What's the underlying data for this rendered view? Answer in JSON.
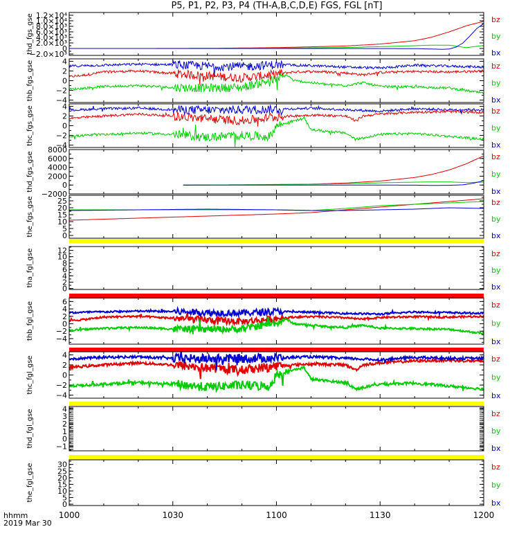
{
  "title": "P5, P1, P2, P3, P4 (TH-A,B,C,D,E) FGS, FGL [nT]",
  "x_axis": {
    "label_line1": "hhmm",
    "label_line2": "2019 Mar 30",
    "ticks": [
      "1000",
      "1030",
      "1100",
      "1130",
      "1200"
    ]
  },
  "colors": {
    "bz": "#e00000",
    "by": "#00cc00",
    "bx": "#0000d0",
    "bar_yellow": "#ffff00",
    "bar_red": "#ff0000"
  },
  "chart_data": [
    {
      "type": "line",
      "ylabel": "thd_fgs_gse",
      "yticks": [
        "1.2×10⁴",
        "1.0×10⁴",
        "8.0×10³",
        "6.0×10³",
        "4.0×10³",
        "2.0×10³",
        "0",
        "−2.0×10³"
      ],
      "ytick_values": [
        12000,
        10000,
        8000,
        6000,
        4000,
        2000,
        0,
        -2000
      ],
      "ylim": [
        -2500,
        13000
      ],
      "legend": [
        "bz",
        "by",
        "bx"
      ],
      "series": [
        {
          "name": "bz",
          "x": [
            0,
            20,
            40,
            60,
            80,
            90,
            100,
            105,
            110,
            115,
            120
          ],
          "values": [
            0,
            0,
            50,
            300,
            900,
            1600,
            2800,
            4100,
            6000,
            8200,
            9800
          ]
        },
        {
          "name": "by",
          "x": [
            0,
            40,
            60,
            80,
            90,
            100,
            105,
            110,
            115,
            120
          ],
          "values": [
            0,
            0,
            100,
            350,
            650,
            1000,
            1200,
            1200,
            300,
            1100
          ]
        },
        {
          "name": "bx",
          "x": [
            0,
            80,
            100,
            105,
            108,
            110,
            112,
            114,
            116,
            118,
            120
          ],
          "values": [
            0,
            0,
            -50,
            -200,
            -300,
            -200,
            500,
            2000,
            4500,
            7200,
            9000
          ]
        }
      ]
    },
    {
      "type": "line",
      "ylabel": "thb_fgs_gse",
      "yticks": [
        "4",
        "2",
        "0",
        "−2",
        "−4"
      ],
      "ytick_values": [
        4,
        2,
        0,
        -2,
        -4
      ],
      "ylim": [
        -4.5,
        4.5
      ],
      "legend": [
        "bz",
        "by",
        "bx"
      ],
      "series": [
        {
          "name": "bz",
          "x": [
            0,
            5,
            10,
            20,
            30,
            40,
            50,
            55,
            60,
            65,
            70,
            75,
            80,
            85,
            90,
            100,
            110,
            120
          ],
          "values": [
            0.8,
            1.2,
            1.8,
            2.0,
            1.5,
            1.0,
            0.6,
            0.9,
            1.4,
            1.8,
            1.9,
            1.8,
            1.6,
            1.2,
            1.7,
            1.9,
            1.8,
            2.0
          ]
        },
        {
          "name": "by",
          "x": [
            0,
            5,
            10,
            20,
            30,
            40,
            50,
            55,
            60,
            63,
            65,
            70,
            75,
            80,
            85,
            90,
            100,
            110,
            120
          ],
          "values": [
            -1.8,
            -1.5,
            -1.2,
            -1.0,
            -1.4,
            -1.5,
            -1.4,
            -0.5,
            0.2,
            1.2,
            0.0,
            -0.4,
            -0.8,
            -1.0,
            -0.4,
            -1.2,
            -1.3,
            -1.5,
            -2.6
          ]
        },
        {
          "name": "bx",
          "x": [
            0,
            10,
            20,
            30,
            40,
            50,
            60,
            70,
            80,
            90,
            100,
            110,
            120
          ],
          "values": [
            3.0,
            3.2,
            3.4,
            3.3,
            3.0,
            2.9,
            3.3,
            3.1,
            2.8,
            2.6,
            3.2,
            3.0,
            2.8
          ]
        }
      ]
    },
    {
      "type": "line",
      "ylabel": "thc_fgs_gse",
      "yticks": [
        "4",
        "2",
        "0",
        "−2",
        "−4"
      ],
      "ytick_values": [
        4,
        2,
        0,
        -2,
        -4
      ],
      "ylim": [
        -4.5,
        4.5
      ],
      "legend": [
        "bz",
        "by",
        "bx"
      ],
      "series": [
        {
          "name": "bz",
          "x": [
            0,
            10,
            20,
            30,
            40,
            50,
            60,
            70,
            80,
            83,
            85,
            90,
            100,
            110,
            120
          ],
          "values": [
            1.5,
            2.0,
            2.4,
            2.0,
            1.4,
            1.0,
            1.8,
            2.2,
            2.0,
            1.0,
            2.0,
            2.4,
            2.8,
            2.9,
            2.7
          ]
        },
        {
          "name": "by",
          "x": [
            0,
            10,
            20,
            30,
            40,
            50,
            58,
            60,
            65,
            68,
            70,
            75,
            80,
            83,
            90,
            100,
            110,
            120
          ],
          "values": [
            -2.2,
            -1.8,
            -1.5,
            -1.8,
            -2.4,
            -2.0,
            -2.3,
            0.0,
            1.0,
            1.5,
            -0.8,
            -1.2,
            -1.5,
            -2.8,
            -1.8,
            -1.6,
            -2.2,
            -2.8
          ]
        },
        {
          "name": "bx",
          "x": [
            0,
            10,
            20,
            30,
            40,
            50,
            60,
            70,
            80,
            90,
            100,
            110,
            120
          ],
          "values": [
            3.2,
            3.5,
            3.6,
            3.3,
            3.2,
            3.3,
            3.4,
            3.6,
            3.3,
            3.0,
            3.5,
            3.3,
            3.3
          ]
        }
      ]
    },
    {
      "type": "line",
      "ylabel": "thd_fgs_gse",
      "yticks": [
        "8000",
        "6000",
        "4000",
        "2000",
        "0",
        "−2000"
      ],
      "ytick_values": [
        8000,
        6000,
        4000,
        2000,
        0,
        -2000
      ],
      "ylim": [
        -2000,
        8000
      ],
      "legend": [
        "bz",
        "by",
        "bx"
      ],
      "series": [
        {
          "name": "bz",
          "x": [
            33,
            50,
            70,
            80,
            90,
            100,
            105,
            110,
            115,
            120
          ],
          "values": [
            0,
            50,
            200,
            450,
            900,
            1700,
            2400,
            3400,
            4800,
            6600
          ]
        },
        {
          "name": "by",
          "x": [
            33,
            60,
            80,
            90,
            100,
            105,
            110,
            115,
            120
          ],
          "values": [
            0,
            80,
            300,
            500,
            650,
            700,
            700,
            550,
            650
          ]
        },
        {
          "name": "bx",
          "x": [
            33,
            80,
            100,
            105,
            110,
            114,
            117,
            120
          ],
          "values": [
            0,
            0,
            -30,
            -80,
            -60,
            50,
            400,
            1000
          ]
        }
      ]
    },
    {
      "type": "line",
      "ylabel": "the_fgs_gse",
      "yticks": [
        "25",
        "20",
        "15",
        "10",
        "5",
        "0"
      ],
      "ytick_values": [
        25,
        20,
        15,
        10,
        5,
        0
      ],
      "ylim": [
        -2,
        29
      ],
      "legend": [
        "bz",
        "by",
        "bx"
      ],
      "series": [
        {
          "name": "bz",
          "x": [
            0,
            20,
            40,
            60,
            70,
            80,
            90,
            100,
            110,
            120
          ],
          "values": [
            11,
            12.5,
            14,
            15.5,
            16.5,
            18.5,
            20.5,
            22.5,
            24.5,
            26.5
          ]
        },
        {
          "name": "by",
          "x": [
            0,
            20,
            40,
            60,
            70,
            80,
            90,
            100,
            110,
            120
          ],
          "values": [
            18.5,
            18.5,
            18.5,
            18.5,
            18.0,
            19.5,
            21.5,
            22.5,
            23.5,
            24.5
          ]
        },
        {
          "name": "bx",
          "x": [
            0,
            20,
            40,
            60,
            70,
            80,
            90,
            100,
            110,
            120
          ],
          "values": [
            18.0,
            18.5,
            19.0,
            18.5,
            18.0,
            18.0,
            18.5,
            19.0,
            20.0,
            19.5
          ]
        }
      ]
    },
    {
      "type": "line",
      "ylabel": "tha_fgl_gse",
      "yticks": [
        "12",
        "10",
        "8",
        "6",
        "4",
        "2",
        "0"
      ],
      "ytick_values": [
        12,
        10,
        8,
        6,
        4,
        2,
        0
      ],
      "ylim": [
        -0.3,
        13.2
      ],
      "legend": [
        "bz",
        "by",
        "bx"
      ],
      "series": []
    },
    {
      "type": "line",
      "ylabel": "thb_fgl_gse",
      "yticks": [
        "6",
        "4",
        "2",
        "0",
        "−2",
        "−4"
      ],
      "ytick_values": [
        6,
        4,
        2,
        0,
        -2,
        -4
      ],
      "ylim": [
        -5.5,
        7
      ],
      "legend": [
        "bz",
        "by",
        "bx"
      ],
      "series": [
        {
          "name": "bz",
          "x": [
            0,
            5,
            10,
            20,
            30,
            40,
            50,
            55,
            60,
            65,
            70,
            75,
            80,
            85,
            90,
            100,
            110,
            120
          ],
          "values": [
            0.8,
            1.2,
            1.8,
            2.0,
            1.5,
            1.0,
            0.6,
            0.9,
            1.4,
            1.8,
            1.9,
            1.8,
            1.6,
            1.2,
            1.7,
            1.9,
            1.8,
            2.0
          ]
        },
        {
          "name": "by",
          "x": [
            0,
            5,
            10,
            20,
            30,
            40,
            50,
            55,
            60,
            63,
            65,
            70,
            75,
            80,
            85,
            90,
            100,
            110,
            120
          ],
          "values": [
            -1.8,
            -1.5,
            -1.2,
            -1.0,
            -1.4,
            -1.5,
            -1.4,
            -0.5,
            0.2,
            1.2,
            0.0,
            -0.4,
            -0.8,
            -1.0,
            -0.4,
            -1.2,
            -1.3,
            -1.5,
            -2.6
          ]
        },
        {
          "name": "bx",
          "x": [
            0,
            10,
            20,
            30,
            40,
            50,
            60,
            70,
            80,
            90,
            100,
            110,
            120
          ],
          "values": [
            3.0,
            3.2,
            3.4,
            3.3,
            3.0,
            2.9,
            3.3,
            3.1,
            2.8,
            2.6,
            3.2,
            3.0,
            2.8
          ]
        }
      ]
    },
    {
      "type": "line",
      "ylabel": "thc_fgl_gse",
      "yticks": [
        "4",
        "2",
        "0",
        "−2",
        "−4"
      ],
      "ytick_values": [
        4,
        2,
        0,
        -2,
        -4
      ],
      "ylim": [
        -4.6,
        4.6
      ],
      "legend": [
        "bz",
        "by",
        "bx"
      ],
      "series": [
        {
          "name": "bz",
          "x": [
            0,
            10,
            20,
            30,
            40,
            50,
            60,
            70,
            80,
            83,
            85,
            90,
            100,
            110,
            120
          ],
          "values": [
            1.5,
            2.0,
            2.4,
            2.0,
            1.4,
            1.0,
            1.8,
            2.2,
            2.0,
            1.0,
            2.0,
            2.4,
            2.8,
            2.9,
            2.7
          ]
        },
        {
          "name": "by",
          "x": [
            0,
            10,
            20,
            30,
            40,
            50,
            58,
            60,
            65,
            68,
            70,
            75,
            80,
            83,
            90,
            100,
            110,
            120
          ],
          "values": [
            -2.2,
            -1.8,
            -1.5,
            -1.8,
            -2.4,
            -2.0,
            -2.3,
            0.0,
            1.0,
            1.5,
            -0.8,
            -1.2,
            -1.5,
            -2.8,
            -1.8,
            -1.6,
            -2.2,
            -2.8
          ]
        },
        {
          "name": "bx",
          "x": [
            0,
            10,
            20,
            30,
            40,
            50,
            60,
            70,
            80,
            90,
            100,
            110,
            120
          ],
          "values": [
            3.2,
            3.5,
            3.6,
            3.3,
            3.2,
            3.3,
            3.4,
            3.6,
            3.3,
            3.0,
            3.5,
            3.3,
            3.3
          ]
        }
      ]
    },
    {
      "type": "line",
      "ylabel": "thd_fgl_gse",
      "yticks": [
        "4",
        "3",
        "2",
        "1",
        "0",
        "−1"
      ],
      "ytick_values": [
        4,
        3,
        2,
        1,
        0,
        -1
      ],
      "ylim": [
        -1.6,
        4.3
      ],
      "legend": [
        "bz",
        "by",
        "bx"
      ],
      "series": []
    },
    {
      "type": "line",
      "ylabel": "the_fgl_gse",
      "yticks": [
        "30",
        "25",
        "20",
        "15",
        "10",
        "5",
        "0"
      ],
      "ytick_values": [
        30,
        25,
        20,
        15,
        10,
        5,
        0
      ],
      "ylim": [
        -1,
        33.5
      ],
      "legend": [
        "bz",
        "by",
        "bx"
      ],
      "series": []
    }
  ]
}
